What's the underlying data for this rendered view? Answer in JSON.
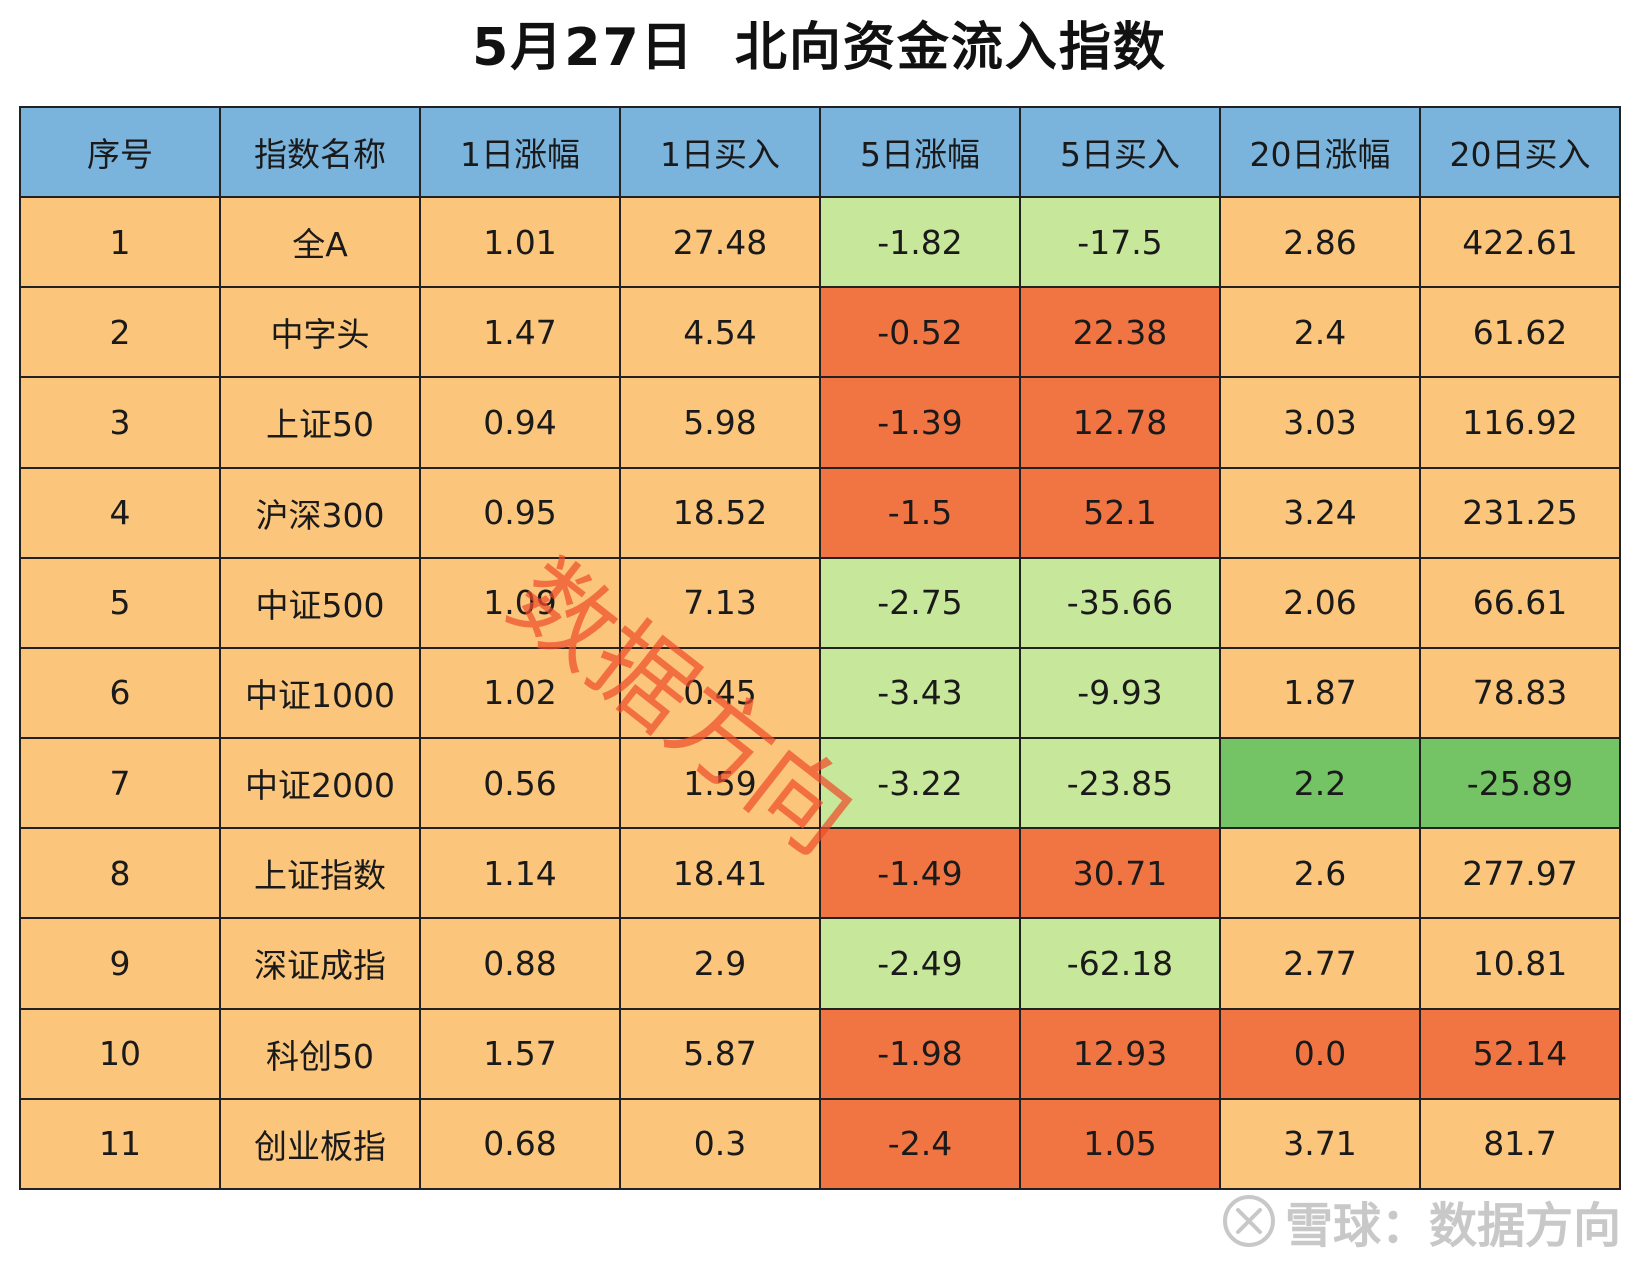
{
  "title": "5月27日  北向资金流入指数",
  "headers": [
    "序号",
    "指数名称",
    "1日涨幅",
    "1日买入",
    "5日涨幅",
    "5日买入",
    "20日涨幅",
    "20日买入"
  ],
  "rows": [
    [
      "1",
      "全A",
      "1.01",
      "27.48",
      "-1.82",
      "-17.5",
      "2.86",
      "422.61"
    ],
    [
      "2",
      "中字头",
      "1.47",
      "4.54",
      "-0.52",
      "22.38",
      "2.4",
      "61.62"
    ],
    [
      "3",
      "上证50",
      "0.94",
      "5.98",
      "-1.39",
      "12.78",
      "3.03",
      "116.92"
    ],
    [
      "4",
      "沪深300",
      "0.95",
      "18.52",
      "-1.5",
      "52.1",
      "3.24",
      "231.25"
    ],
    [
      "5",
      "中证500",
      "1.09",
      "7.13",
      "-2.75",
      "-35.66",
      "2.06",
      "66.61"
    ],
    [
      "6",
      "中证1000",
      "1.02",
      "0.45",
      "-3.43",
      "-9.93",
      "1.87",
      "78.83"
    ],
    [
      "7",
      "中证2000",
      "0.56",
      "1.59",
      "-3.22",
      "-23.85",
      "2.2",
      "-25.89"
    ],
    [
      "8",
      "上证指数",
      "1.14",
      "18.41",
      "-1.49",
      "30.71",
      "2.6",
      "277.97"
    ],
    [
      "9",
      "深证成指",
      "0.88",
      "2.9",
      "-2.49",
      "-62.18",
      "2.77",
      "10.81"
    ],
    [
      "10",
      "科创50",
      "1.57",
      "5.87",
      "-1.98",
      "12.93",
      "0.0",
      "52.14"
    ],
    [
      "11",
      "创业板指",
      "0.68",
      "0.3",
      "-2.4",
      "1.05",
      "3.71",
      "81.7"
    ]
  ],
  "cell_highlights": [
    [
      "",
      "",
      "",
      "",
      "down",
      "down",
      "",
      ""
    ],
    [
      "",
      "",
      "",
      "",
      "up",
      "up",
      "",
      ""
    ],
    [
      "",
      "",
      "",
      "",
      "up",
      "up",
      "",
      ""
    ],
    [
      "",
      "",
      "",
      "",
      "up",
      "up",
      "",
      ""
    ],
    [
      "",
      "",
      "",
      "",
      "down",
      "down",
      "",
      ""
    ],
    [
      "",
      "",
      "",
      "",
      "down",
      "down",
      "",
      ""
    ],
    [
      "",
      "",
      "",
      "",
      "down",
      "down",
      "deep",
      "deep"
    ],
    [
      "",
      "",
      "",
      "",
      "up",
      "up",
      "",
      ""
    ],
    [
      "",
      "",
      "",
      "",
      "down",
      "down",
      "",
      ""
    ],
    [
      "",
      "",
      "",
      "",
      "up",
      "up",
      "up",
      "up"
    ],
    [
      "",
      "",
      "",
      "",
      "up",
      "up",
      "",
      ""
    ]
  ],
  "colors": {
    "header": "#7ab4dd",
    "default_cell": "#fbc57c",
    "light_green": "#c7e79a",
    "orange_red": "#f07543",
    "green": "#74c365"
  },
  "watermark": "数据方向",
  "footer": {
    "icon": "snowball-logo-icon",
    "text": "雪球：数据方向"
  }
}
